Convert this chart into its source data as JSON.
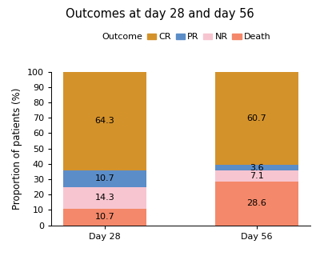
{
  "title": "Outcomes at day 28 and day 56",
  "ylabel": "Proportion of patients (%)",
  "categories": [
    "Day 28",
    "Day 56"
  ],
  "outcomes": [
    "Death",
    "NR",
    "PR",
    "CR"
  ],
  "values": {
    "Day 28": [
      10.7,
      14.3,
      10.7,
      64.3
    ],
    "Day 56": [
      28.6,
      7.1,
      3.6,
      60.7
    ]
  },
  "colors": {
    "Death": "#F4886A",
    "NR": "#F7C5D0",
    "PR": "#5B8DC8",
    "CR": "#D4922A"
  },
  "legend_label": "Outcome",
  "ylim": [
    0,
    100
  ],
  "yticks": [
    0,
    10,
    20,
    30,
    40,
    50,
    60,
    70,
    80,
    90,
    100
  ],
  "bar_width": 0.55,
  "background_color": "#ffffff",
  "label_fontsize": 8,
  "title_fontsize": 10.5,
  "axis_fontsize": 8.5,
  "legend_fontsize": 8,
  "tick_fontsize": 8
}
